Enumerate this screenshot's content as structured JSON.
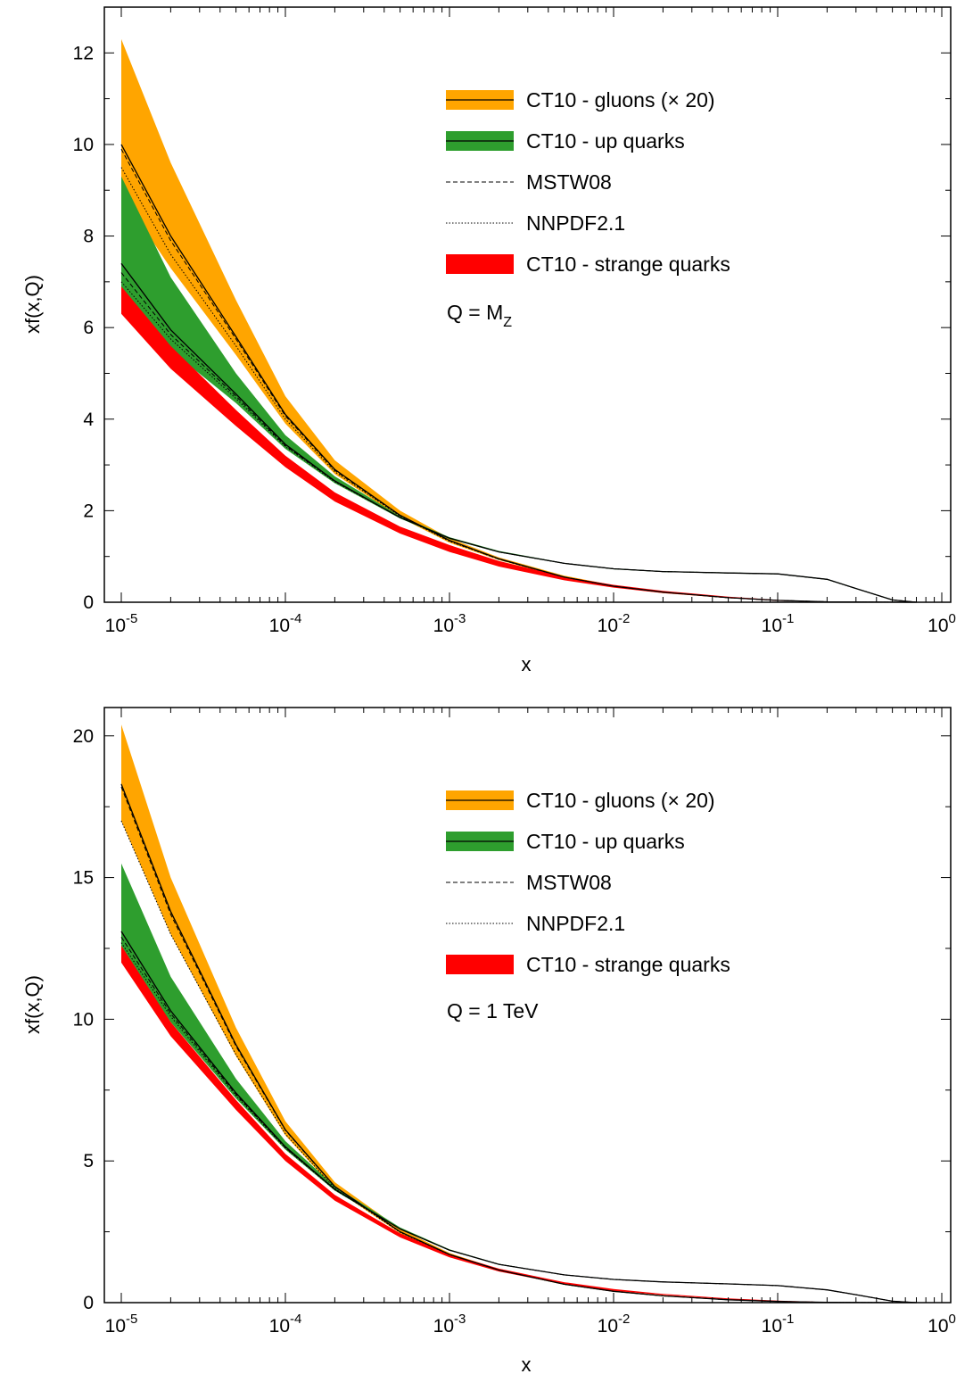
{
  "chart_data": [
    {
      "type": "area",
      "xlabel": "x",
      "ylabel": "xf(x,Q)",
      "xscale": "log",
      "xlim": [
        1e-05,
        1
      ],
      "ylim": [
        0,
        13
      ],
      "yticks": [
        0,
        2,
        4,
        6,
        8,
        10,
        12
      ],
      "xtick_labels": [
        {
          "base": "10",
          "exp": "-5"
        },
        {
          "base": "10",
          "exp": "-4"
        },
        {
          "base": "10",
          "exp": "-3"
        },
        {
          "base": "10",
          "exp": "-2"
        },
        {
          "base": "10",
          "exp": "-1"
        },
        {
          "base": "10",
          "exp": "0"
        }
      ],
      "legend": [
        {
          "label": "CT10 - gluons (× 20)",
          "kind": "band-line",
          "color": "#FFA500"
        },
        {
          "label": "CT10 - up quarks",
          "kind": "band-line",
          "color": "#2E9E2E"
        },
        {
          "label": "MSTW08",
          "kind": "dashed",
          "color": "#000000"
        },
        {
          "label": "NNPDF2.1",
          "kind": "dotted",
          "color": "#000000"
        },
        {
          "label": "CT10 - strange quarks",
          "kind": "band",
          "color": "#FF0000"
        }
      ],
      "annotation": {
        "text": "Q = M",
        "sub": "Z"
      },
      "legend_position": "top-right",
      "x": [
        1e-05,
        2e-05,
        5e-05,
        0.0001,
        0.0002,
        0.0005,
        0.001,
        0.002,
        0.005,
        0.01,
        0.02,
        0.05,
        0.1,
        0.2,
        0.3,
        0.5,
        0.7
      ],
      "series": [
        {
          "name": "CT10 - gluons (× 20)",
          "color": "#FFA500",
          "central": [
            10.0,
            8.0,
            5.8,
            4.1,
            2.9,
            1.9,
            1.35,
            0.95,
            0.55,
            0.35,
            0.22,
            0.1,
            0.04,
            0.01,
            0.005,
            0.001,
            0.0
          ],
          "lower": [
            8.9,
            7.3,
            5.4,
            3.9,
            2.8,
            1.85,
            1.3,
            0.92,
            0.53,
            0.33,
            0.2,
            0.09,
            0.035,
            0.008,
            0.004,
            0.0,
            0.0
          ],
          "upper": [
            12.3,
            9.6,
            6.6,
            4.5,
            3.1,
            2.0,
            1.4,
            0.98,
            0.58,
            0.37,
            0.24,
            0.11,
            0.045,
            0.013,
            0.006,
            0.002,
            0.0
          ],
          "mstw08": [
            9.9,
            7.9,
            5.75,
            4.07,
            2.88,
            1.89,
            1.34,
            0.94,
            0.55,
            0.35,
            0.22,
            0.1,
            0.04,
            0.01,
            0.005,
            0.001,
            0.0
          ],
          "nnpdf21": [
            9.5,
            7.6,
            5.6,
            4.0,
            2.85,
            1.88,
            1.33,
            0.94,
            0.55,
            0.35,
            0.22,
            0.1,
            0.04,
            0.01,
            0.005,
            0.001,
            0.0
          ]
        },
        {
          "name": "CT10 - up quarks",
          "color": "#2E9E2E",
          "central": [
            7.4,
            5.95,
            4.55,
            3.45,
            2.65,
            1.85,
            1.4,
            1.1,
            0.85,
            0.73,
            0.67,
            0.64,
            0.62,
            0.5,
            0.3,
            0.05,
            0.0
          ],
          "lower": [
            6.6,
            5.5,
            4.35,
            3.35,
            2.6,
            1.83,
            1.38,
            1.09,
            0.84,
            0.72,
            0.66,
            0.63,
            0.61,
            0.49,
            0.29,
            0.04,
            0.0
          ],
          "upper": [
            9.3,
            7.1,
            5.0,
            3.65,
            2.75,
            1.88,
            1.42,
            1.12,
            0.86,
            0.74,
            0.68,
            0.65,
            0.63,
            0.51,
            0.31,
            0.06,
            0.0
          ],
          "mstw08": [
            7.2,
            5.85,
            4.5,
            3.42,
            2.64,
            1.85,
            1.4,
            1.1,
            0.85,
            0.73,
            0.67,
            0.64,
            0.62,
            0.5,
            0.3,
            0.05,
            0.0
          ],
          "nnpdf21": [
            7.0,
            5.75,
            4.45,
            3.4,
            2.63,
            1.85,
            1.4,
            1.1,
            0.85,
            0.73,
            0.67,
            0.64,
            0.62,
            0.5,
            0.3,
            0.05,
            0.0
          ]
        },
        {
          "name": "CT10 - strange quarks",
          "color": "#FF0000",
          "lower": [
            6.3,
            5.1,
            3.85,
            2.95,
            2.2,
            1.5,
            1.1,
            0.78,
            0.48,
            0.32,
            0.2,
            0.09,
            0.03,
            0.005,
            0.0,
            0.0,
            0.0
          ],
          "upper": [
            6.9,
            5.6,
            4.2,
            3.2,
            2.4,
            1.65,
            1.25,
            0.9,
            0.56,
            0.38,
            0.25,
            0.12,
            0.05,
            0.01,
            0.0,
            0.0,
            0.0
          ]
        }
      ]
    },
    {
      "type": "area",
      "xlabel": "x",
      "ylabel": "xf(x,Q)",
      "xscale": "log",
      "xlim": [
        1e-05,
        1
      ],
      "ylim": [
        0,
        21
      ],
      "yticks": [
        0,
        5,
        10,
        15,
        20
      ],
      "xtick_labels": [
        {
          "base": "10",
          "exp": "-5"
        },
        {
          "base": "10",
          "exp": "-4"
        },
        {
          "base": "10",
          "exp": "-3"
        },
        {
          "base": "10",
          "exp": "-2"
        },
        {
          "base": "10",
          "exp": "-1"
        },
        {
          "base": "10",
          "exp": "0"
        }
      ],
      "legend": [
        {
          "label": "CT10 - gluons (× 20)",
          "kind": "band-line",
          "color": "#FFA500"
        },
        {
          "label": "CT10 - up quarks",
          "kind": "band-line",
          "color": "#2E9E2E"
        },
        {
          "label": "MSTW08",
          "kind": "dashed",
          "color": "#000000"
        },
        {
          "label": "NNPDF2.1",
          "kind": "dotted",
          "color": "#000000"
        },
        {
          "label": "CT10 - strange quarks",
          "kind": "band",
          "color": "#FF0000"
        }
      ],
      "annotation": {
        "text": "Q = 1 TeV",
        "sub": ""
      },
      "legend_position": "top-right",
      "x": [
        1e-05,
        2e-05,
        5e-05,
        0.0001,
        0.0002,
        0.0005,
        0.001,
        0.002,
        0.005,
        0.01,
        0.02,
        0.05,
        0.1,
        0.2,
        0.3,
        0.5,
        0.7
      ],
      "series": [
        {
          "name": "CT10 - gluons (× 20)",
          "color": "#FFA500",
          "central": [
            18.3,
            13.8,
            9.1,
            6.1,
            4.1,
            2.5,
            1.7,
            1.15,
            0.65,
            0.4,
            0.24,
            0.1,
            0.04,
            0.01,
            0.005,
            0.001,
            0.0
          ],
          "lower": [
            17.0,
            13.0,
            8.7,
            5.9,
            4.0,
            2.45,
            1.65,
            1.12,
            0.63,
            0.38,
            0.22,
            0.09,
            0.035,
            0.008,
            0.004,
            0.0,
            0.0
          ],
          "upper": [
            20.4,
            15.0,
            9.7,
            6.4,
            4.25,
            2.6,
            1.75,
            1.18,
            0.67,
            0.42,
            0.26,
            0.11,
            0.045,
            0.013,
            0.006,
            0.002,
            0.0
          ],
          "mstw08": [
            18.2,
            13.7,
            9.05,
            6.08,
            4.09,
            2.5,
            1.7,
            1.15,
            0.65,
            0.4,
            0.24,
            0.1,
            0.04,
            0.01,
            0.005,
            0.001,
            0.0
          ],
          "nnpdf21": [
            17.0,
            13.0,
            8.75,
            5.95,
            4.03,
            2.48,
            1.69,
            1.15,
            0.65,
            0.4,
            0.24,
            0.1,
            0.04,
            0.01,
            0.005,
            0.001,
            0.0
          ]
        },
        {
          "name": "CT10 - up quarks",
          "color": "#2E9E2E",
          "central": [
            13.1,
            10.3,
            7.4,
            5.5,
            4.0,
            2.6,
            1.85,
            1.35,
            0.98,
            0.82,
            0.73,
            0.66,
            0.6,
            0.45,
            0.28,
            0.05,
            0.0
          ],
          "lower": [
            12.4,
            9.9,
            7.2,
            5.4,
            3.95,
            2.58,
            1.84,
            1.34,
            0.97,
            0.81,
            0.72,
            0.65,
            0.59,
            0.44,
            0.27,
            0.04,
            0.0
          ],
          "upper": [
            15.5,
            11.5,
            7.9,
            5.7,
            4.1,
            2.65,
            1.88,
            1.37,
            0.99,
            0.83,
            0.74,
            0.67,
            0.61,
            0.46,
            0.29,
            0.06,
            0.0
          ],
          "mstw08": [
            12.9,
            10.2,
            7.35,
            5.47,
            3.99,
            2.6,
            1.85,
            1.35,
            0.98,
            0.82,
            0.73,
            0.66,
            0.6,
            0.45,
            0.28,
            0.05,
            0.0
          ],
          "nnpdf21": [
            12.7,
            10.1,
            7.3,
            5.45,
            3.98,
            2.6,
            1.85,
            1.35,
            0.98,
            0.82,
            0.73,
            0.66,
            0.6,
            0.45,
            0.28,
            0.05,
            0.0
          ]
        },
        {
          "name": "CT10 - strange quarks",
          "color": "#FF0000",
          "lower": [
            12.0,
            9.4,
            6.8,
            5.0,
            3.6,
            2.3,
            1.6,
            1.1,
            0.65,
            0.42,
            0.27,
            0.12,
            0.05,
            0.01,
            0.0,
            0.0,
            0.0
          ],
          "upper": [
            12.6,
            9.9,
            7.15,
            5.25,
            3.8,
            2.45,
            1.72,
            1.2,
            0.72,
            0.48,
            0.31,
            0.15,
            0.07,
            0.02,
            0.0,
            0.0,
            0.0
          ]
        }
      ]
    }
  ]
}
